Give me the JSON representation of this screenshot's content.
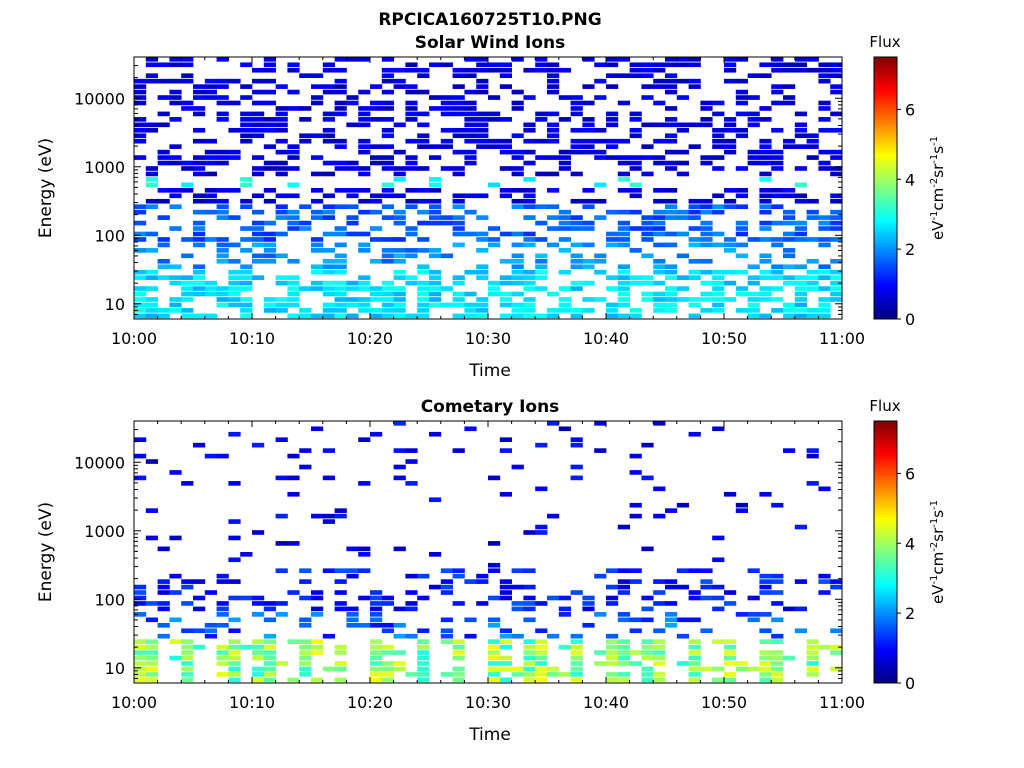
{
  "figure": {
    "title": "RPCICA160725T10.PNG"
  },
  "colorscale": {
    "name": "jet",
    "stops": [
      "#00007f",
      "#0000ff",
      "#007fff",
      "#00ffff",
      "#7fff7f",
      "#ffff00",
      "#ff7f00",
      "#ff0000",
      "#7f0000"
    ],
    "min": 0,
    "max": 7.5,
    "ticks": [
      0,
      2,
      4,
      6
    ],
    "title": "Flux"
  },
  "chart_data": [
    {
      "type": "heatmap",
      "title": "Solar Wind Ions",
      "xlabel": "Time",
      "ylabel": "Energy (eV)",
      "xlim": [
        "10:00",
        "11:00"
      ],
      "x_ticks": [
        "10:00",
        "10:10",
        "10:20",
        "10:30",
        "10:40",
        "10:50",
        "11:00"
      ],
      "yscale": "log",
      "ylim": [
        6,
        40000
      ],
      "y_ticks": [
        "10",
        "100",
        "1000",
        "10000"
      ],
      "colorbar": {
        "label": "Flux",
        "units": "eV-1cm-2sr-1s-1",
        "range": [
          0,
          7.5
        ],
        "ticks": [
          "0",
          "2",
          "4",
          "6"
        ]
      },
      "time_bins": 60,
      "bands": [
        {
          "energy_range": [
            6,
            30
          ],
          "value_range": [
            2.2,
            3.0
          ],
          "fill": 0.55,
          "pattern": "blocks"
        },
        {
          "energy_range": [
            30,
            80
          ],
          "value_range": [
            1.6,
            2.4
          ],
          "fill": 0.35
        },
        {
          "energy_range": [
            80,
            300
          ],
          "value_range": [
            1.2,
            2.0
          ],
          "fill": 0.45
        },
        {
          "energy_range": [
            500,
            750
          ],
          "value_range": [
            2.6,
            3.2
          ],
          "fill": 0.35,
          "note": "periodic cyan spots"
        },
        {
          "energy_range": [
            300,
            40000
          ],
          "value_range": [
            0.4,
            1.0
          ],
          "fill": 0.42
        }
      ]
    },
    {
      "type": "heatmap",
      "title": "Cometary Ions",
      "xlabel": "Time",
      "ylabel": "Energy (eV)",
      "xlim": [
        "10:00",
        "11:00"
      ],
      "x_ticks": [
        "10:00",
        "10:10",
        "10:20",
        "10:30",
        "10:40",
        "10:50",
        "11:00"
      ],
      "yscale": "log",
      "ylim": [
        6,
        40000
      ],
      "y_ticks": [
        "10",
        "100",
        "1000",
        "10000"
      ],
      "colorbar": {
        "label": "Flux",
        "units": "eV-1cm-2sr-1s-1",
        "range": [
          0,
          7.5
        ],
        "ticks": [
          "0",
          "2",
          "4",
          "6"
        ]
      },
      "time_bins": 60,
      "bands": [
        {
          "energy_range": [
            6,
            25
          ],
          "value_range": [
            3.0,
            4.6
          ],
          "fill": 0.55,
          "pattern": "periodic",
          "period_min": 3.3
        },
        {
          "energy_range": [
            25,
            60
          ],
          "value_range": [
            1.0,
            2.2
          ],
          "fill": 0.25
        },
        {
          "energy_range": [
            60,
            300
          ],
          "value_range": [
            0.6,
            1.6
          ],
          "fill": 0.3
        },
        {
          "energy_range": [
            300,
            40000
          ],
          "value_range": [
            0.4,
            1.2
          ],
          "fill": 0.06
        }
      ]
    }
  ]
}
